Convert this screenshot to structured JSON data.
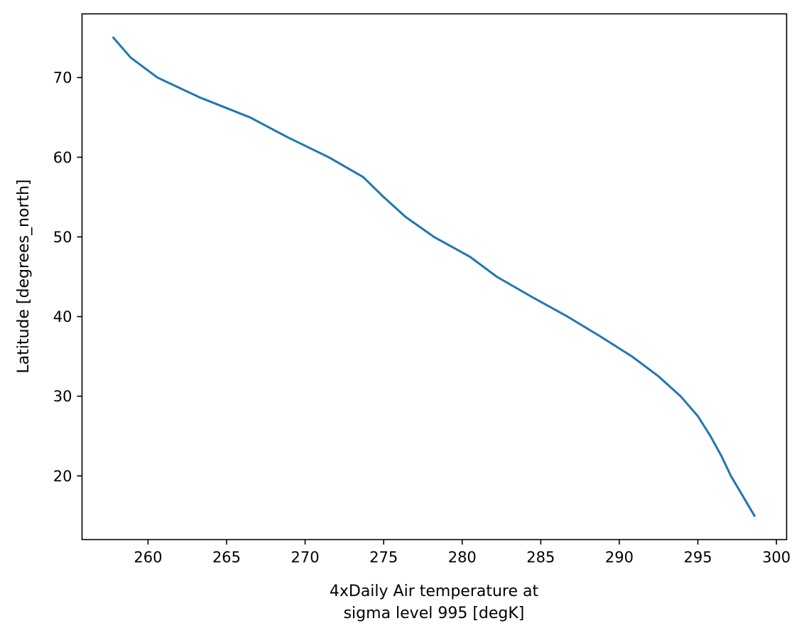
{
  "chart_data": {
    "type": "line",
    "title": "",
    "xlabel_lines": [
      "4xDaily Air temperature at",
      "sigma level 995 [degK]"
    ],
    "ylabel": "Latitude [degrees_north]",
    "xlim": [
      255.8,
      300.65
    ],
    "ylim": [
      12.0,
      78.0
    ],
    "xticks": [
      260,
      265,
      270,
      275,
      280,
      285,
      290,
      295,
      300
    ],
    "yticks": [
      20,
      30,
      40,
      50,
      60,
      70
    ],
    "grid": false,
    "legend": "none",
    "colors": {
      "line": "#1f77b4",
      "axes": "#000000"
    },
    "series": [
      {
        "x": [
          257.8,
          258.9,
          260.6,
          263.3,
          266.5,
          268.9,
          271.5,
          273.7,
          275.0,
          276.4,
          278.2,
          280.5,
          282.2,
          284.4,
          286.7,
          288.8,
          290.8,
          292.5,
          293.9,
          295.0,
          295.8,
          296.5,
          297.1,
          298.6
        ],
        "y": [
          75.0,
          72.5,
          70.0,
          67.5,
          65.0,
          62.5,
          60.0,
          57.5,
          55.0,
          52.5,
          50.0,
          47.5,
          45.0,
          42.5,
          40.0,
          37.5,
          35.0,
          32.5,
          30.0,
          27.5,
          25.0,
          22.5,
          20.0,
          15.0
        ]
      }
    ]
  }
}
